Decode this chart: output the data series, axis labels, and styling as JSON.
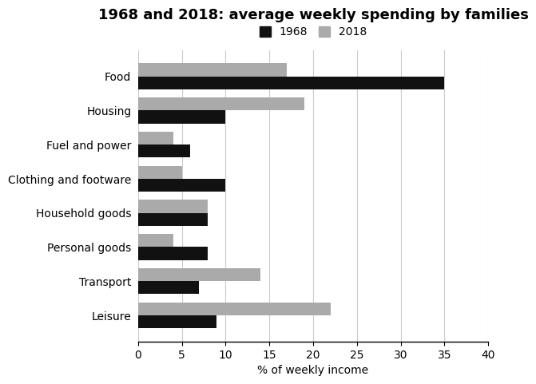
{
  "title": "1968 and 2018: average weekly spending by families",
  "categories": [
    "Food",
    "Housing",
    "Fuel and power",
    "Clothing and footware",
    "Household goods",
    "Personal goods",
    "Transport",
    "Leisure"
  ],
  "values_1968": [
    35,
    10,
    6,
    10,
    8,
    8,
    7,
    9
  ],
  "values_2018": [
    17,
    19,
    4,
    5,
    8,
    4,
    14,
    22
  ],
  "color_1968": "#111111",
  "color_2018": "#aaaaaa",
  "xlabel": "% of weekly income",
  "xlim": [
    0,
    40
  ],
  "xticks": [
    0,
    5,
    10,
    15,
    20,
    25,
    30,
    35,
    40
  ],
  "legend_labels": [
    "1968",
    "2018"
  ],
  "bar_height": 0.38,
  "grid_color": "#cccccc",
  "background_color": "#ffffff",
  "title_fontsize": 13,
  "label_fontsize": 10,
  "tick_fontsize": 10
}
